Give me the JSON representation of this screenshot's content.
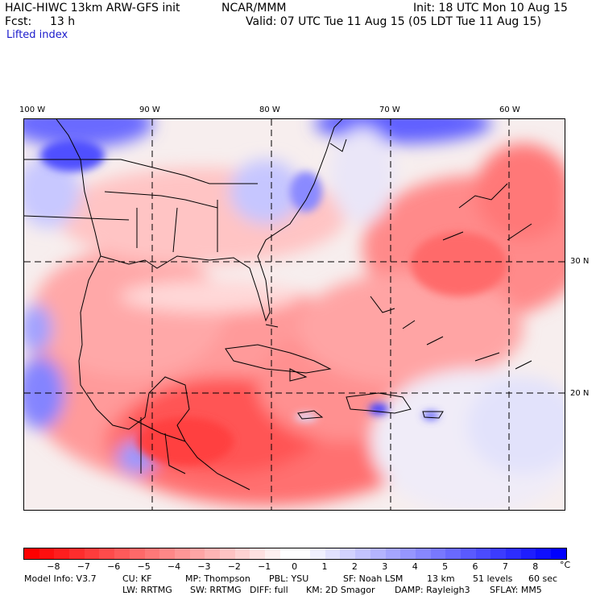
{
  "header": {
    "model_title": "HAIC-HIWC 13km ARW-GFS init",
    "org": "NCAR/MMM",
    "init": "Init: 18 UTC Mon 10 Aug 15",
    "fcst": "Fcst:",
    "fcst_hours": "13 h",
    "valid": "Valid: 07 UTC Tue 11 Aug 15 (05 LDT Tue 11 Aug 15)",
    "field": "Lifted index"
  },
  "map": {
    "lon_labels": [
      "100 W",
      "90 W",
      "80 W",
      "70 W",
      "60 W"
    ],
    "lat_labels": [
      "30 N",
      "20 N"
    ],
    "region": "Gulf of Mexico / Caribbean / Western Atlantic"
  },
  "colorbar": {
    "unit": "°C",
    "ticks": [
      "−8",
      "−7",
      "−6",
      "−5",
      "−4",
      "−3",
      "−2",
      "−1",
      "0",
      "1",
      "2",
      "3",
      "4",
      "5",
      "6",
      "7",
      "8"
    ],
    "colors": [
      "#ff0000",
      "#ff2020",
      "#ff3c3c",
      "#ff5555",
      "#ff6e6e",
      "#ff8888",
      "#ffa2a2",
      "#ffbcbc",
      "#ffd6d6",
      "#ffeeee",
      "#eeeeff",
      "#d6d6ff",
      "#bcbcff",
      "#a2a2ff",
      "#8888ff",
      "#6e6eff",
      "#5050ff",
      "#3434ff",
      "#1a1aff",
      "#0000ff",
      "#0000e0",
      "#0000c8",
      "#0000b0",
      "#000090",
      "#ffffff",
      "#ffffff",
      "#ffffff",
      "#ffffff",
      "#ffffff",
      "#ffffff",
      "#ffffff",
      "#ffffff",
      "#ffffff",
      "#ffffff",
      "#ffffff",
      "#ffffff"
    ]
  },
  "footer": {
    "line1": [
      "Model Info: V3.7",
      "CU: KF",
      "MP: Thompson",
      "PBL: YSU",
      "SF: Noah LSM",
      "13 km",
      "51 levels",
      "60 sec"
    ],
    "line2": [
      "LW: RRTMG",
      "SW: RRTMG",
      "DIFF: full",
      "KM: 2D Smagor",
      "DAMP: Rayleigh3",
      "SFLAY: MM5"
    ]
  }
}
